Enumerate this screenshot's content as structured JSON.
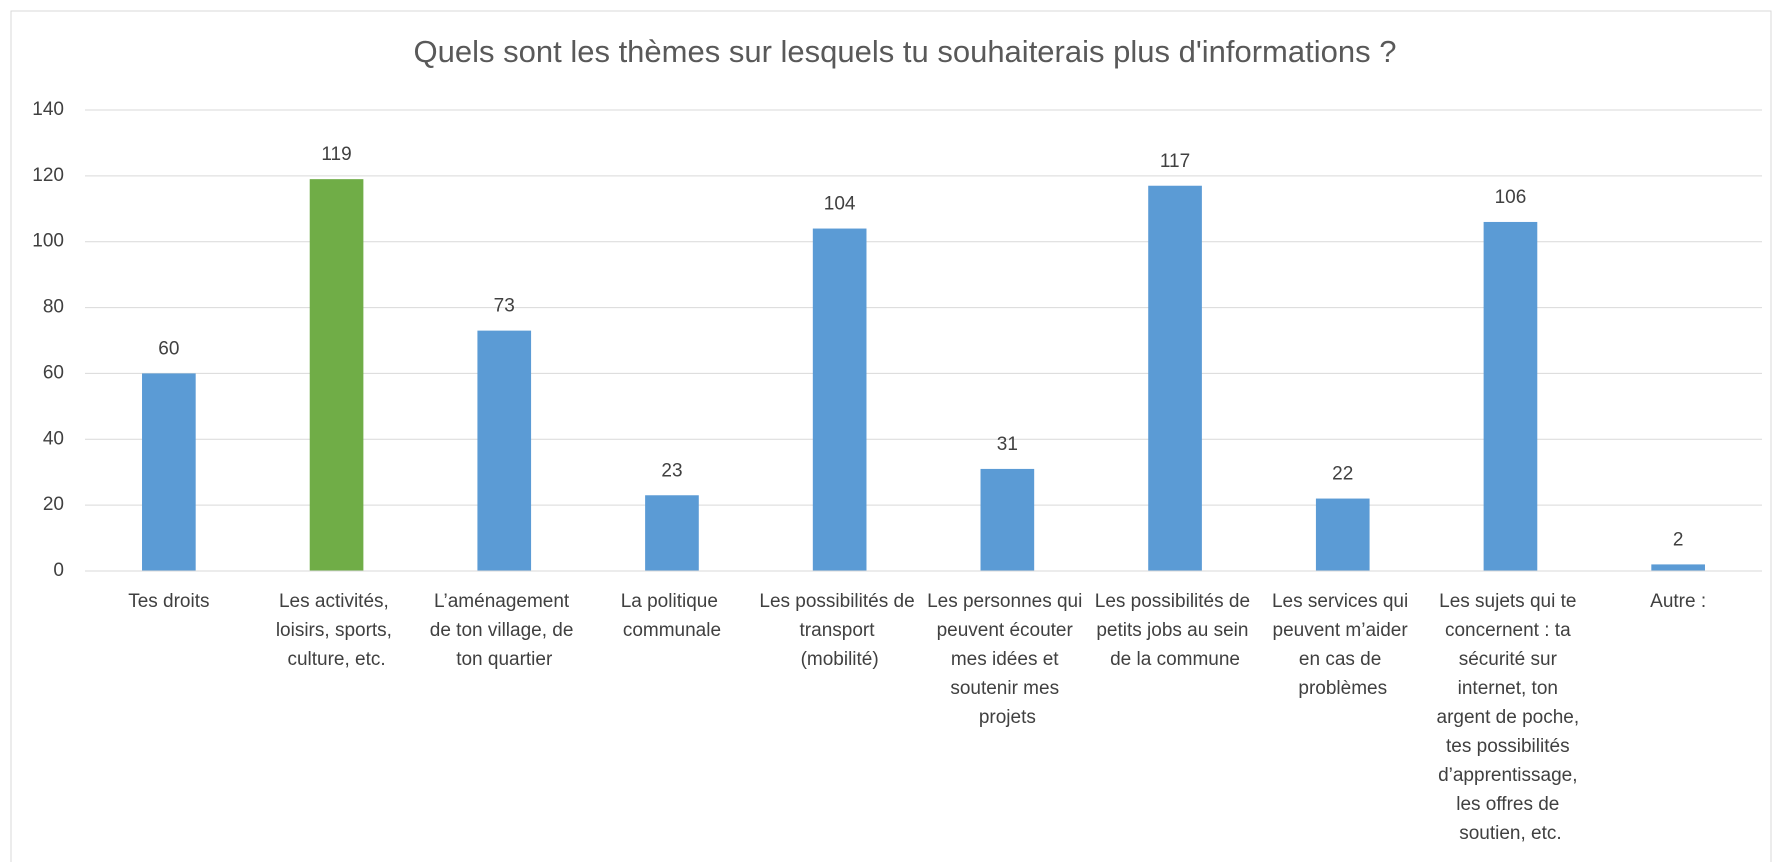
{
  "chart_data": {
    "type": "bar",
    "title": "Quels sont les thèmes sur lesquels tu souhaiterais plus d'informations ?",
    "categories": [
      "Tes droits",
      "Les activités, loisirs, sports, culture, etc.",
      "L’aménagement de ton village, de ton quartier",
      "La politique communale",
      "Les possibilités de transport (mobilité)",
      "Les personnes qui peuvent écouter mes idées et soutenir mes projets",
      "Les possibilités de petits jobs au sein de la commune",
      "Les services qui peuvent m’aider en cas de problèmes",
      "Les sujets qui te concernent : ta sécurité sur internet, ton argent de poche, tes possibilités d’apprentissage, les offres de soutien, etc.",
      "Autre :"
    ],
    "values": [
      60,
      119,
      73,
      23,
      104,
      31,
      117,
      22,
      106,
      2
    ],
    "colors": [
      "#5b9bd5",
      "#70ad47",
      "#5b9bd5",
      "#5b9bd5",
      "#5b9bd5",
      "#5b9bd5",
      "#5b9bd5",
      "#5b9bd5",
      "#5b9bd5",
      "#5b9bd5"
    ],
    "ylim": [
      0,
      140
    ],
    "yticks": [
      0,
      20,
      40,
      60,
      80,
      100,
      120,
      140
    ],
    "grid": true
  }
}
